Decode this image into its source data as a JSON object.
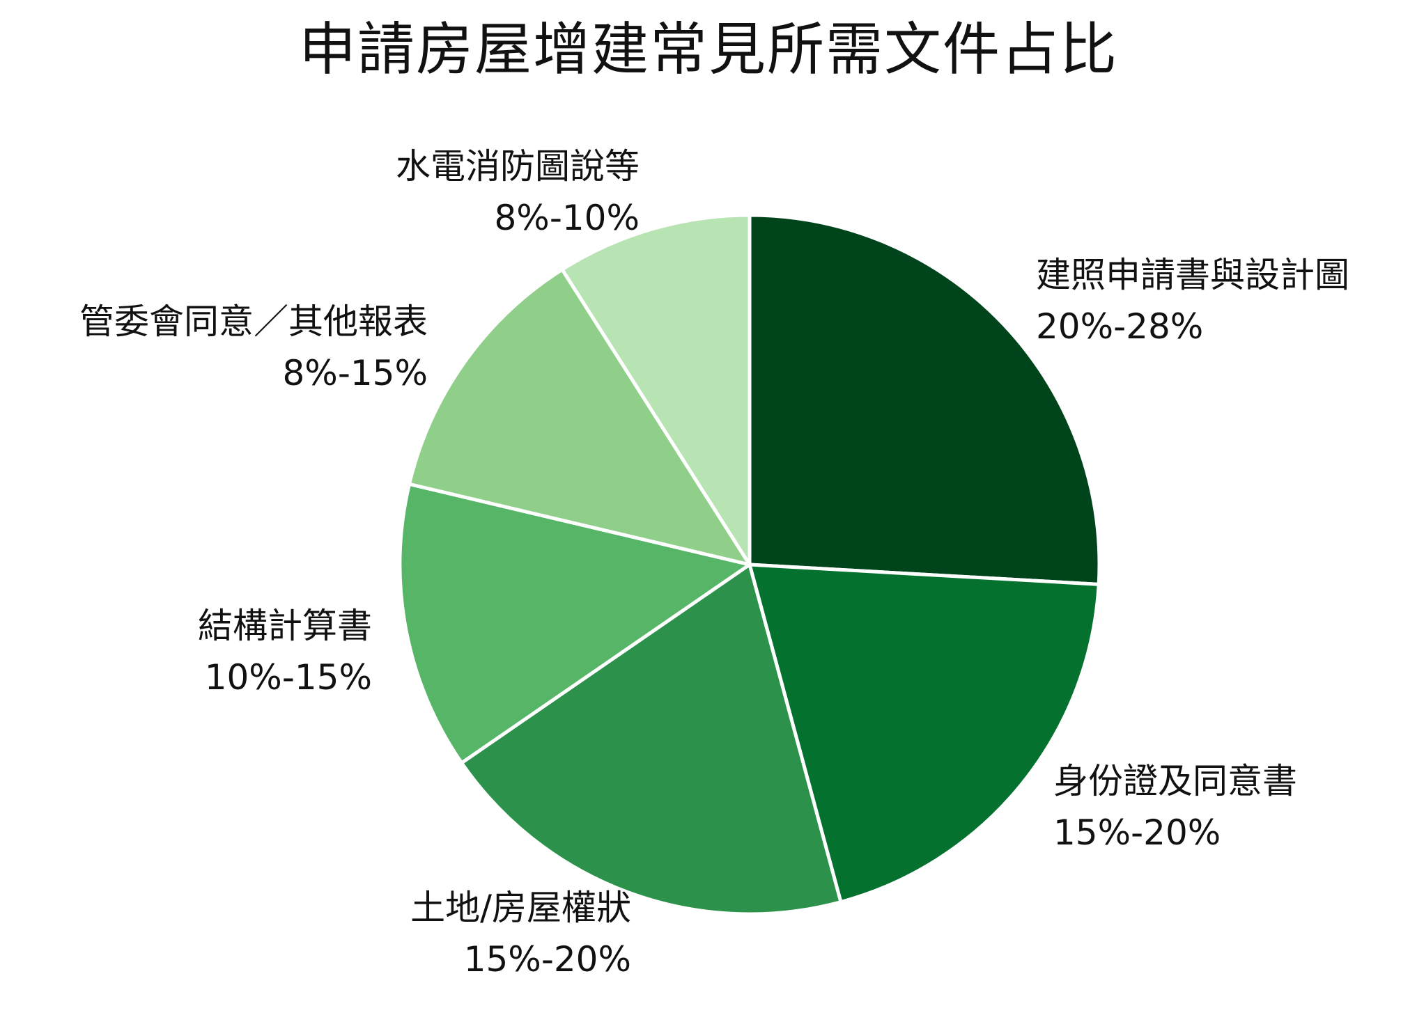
{
  "chart_data": {
    "type": "pie",
    "title": "申請房屋增建常見所需文件占比",
    "slices": [
      {
        "name": "建照申請書與設計圖",
        "value": 25.9,
        "label_value": "20%-28%",
        "color": "#00441b"
      },
      {
        "name": "身份證及同意書",
        "value": 19.9,
        "label_value": "15%-20%",
        "color": "#05712f"
      },
      {
        "name": "土地/房屋權狀",
        "value": 19.6,
        "label_value": "15%-20%",
        "color": "#2c924b"
      },
      {
        "name": "結構計算書",
        "value": 13.3,
        "label_value": "10%-15%",
        "color": "#57b568"
      },
      {
        "name": "管委會同意／其他報表",
        "value": 12.3,
        "label_value": "8%-15%",
        "color": "#8fcf89"
      },
      {
        "name": "水電消防圖說等",
        "value": 9.0,
        "label_value": "8%-10%",
        "color": "#b8e3b3"
      }
    ],
    "start_angle": "12 o'clock",
    "direction": "clockwise",
    "legend": "none"
  }
}
